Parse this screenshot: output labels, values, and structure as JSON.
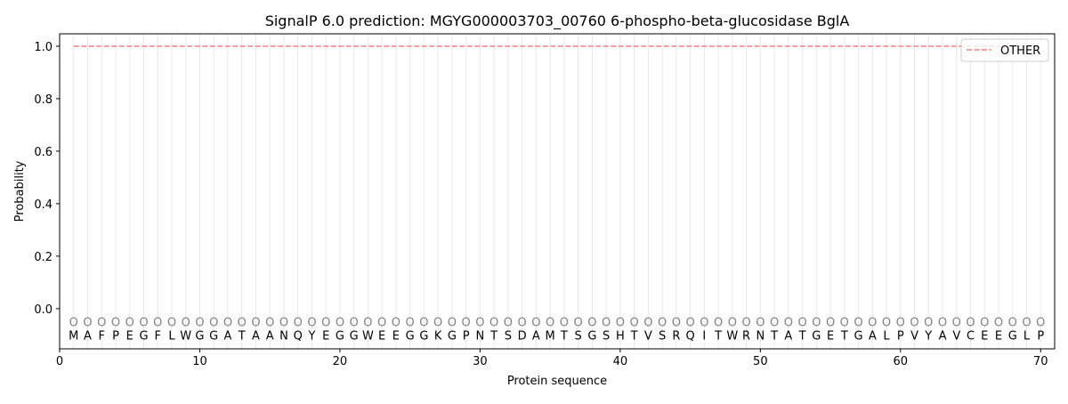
{
  "chart_data": {
    "type": "line",
    "title": "SignalP 6.0 prediction: MGYG000003703_00760 6-phospho-beta-glucosidase BglA",
    "xlabel": "Protein sequence",
    "ylabel": "Probability",
    "xlim": [
      0,
      71
    ],
    "ylim": [
      -0.153,
      1.047
    ],
    "xticks": [
      0,
      10,
      20,
      30,
      40,
      50,
      60,
      70
    ],
    "yticks": [
      0.0,
      0.2,
      0.4,
      0.6,
      0.8,
      1.0
    ],
    "ytick_labels": [
      "0.0",
      "0.2",
      "0.4",
      "0.6",
      "0.8",
      "1.0"
    ],
    "grid": "vertical lines at each residue",
    "legend_position": "top-right",
    "sequence": [
      "M",
      "A",
      "F",
      "P",
      "E",
      "G",
      "F",
      "L",
      "W",
      "G",
      "G",
      "A",
      "T",
      "A",
      "A",
      "N",
      "Q",
      "Y",
      "E",
      "G",
      "G",
      "W",
      "E",
      "E",
      "G",
      "G",
      "K",
      "G",
      "P",
      "N",
      "T",
      "S",
      "D",
      "A",
      "M",
      "T",
      "S",
      "G",
      "S",
      "H",
      "T",
      "V",
      "S",
      "R",
      "Q",
      "I",
      "T",
      "W",
      "R",
      "N",
      "T",
      "A",
      "T",
      "G",
      "E",
      "T",
      "G",
      "A",
      "L",
      "P",
      "V",
      "Y",
      "A",
      "V",
      "C",
      "E",
      "E",
      "G",
      "L",
      "P"
    ],
    "predicted_labels": "OOOOOOOOOOOOOOOOOOOOOOOOOOOOOOOOOOOOOOOOOOOOOOOOOOOOOOOOOOOOOOOOOOOOOO",
    "series": [
      {
        "name": "OTHER",
        "color": "#f08080",
        "style": "dashed",
        "x_start": 1,
        "x_end": 70,
        "value": 1.0
      }
    ]
  }
}
